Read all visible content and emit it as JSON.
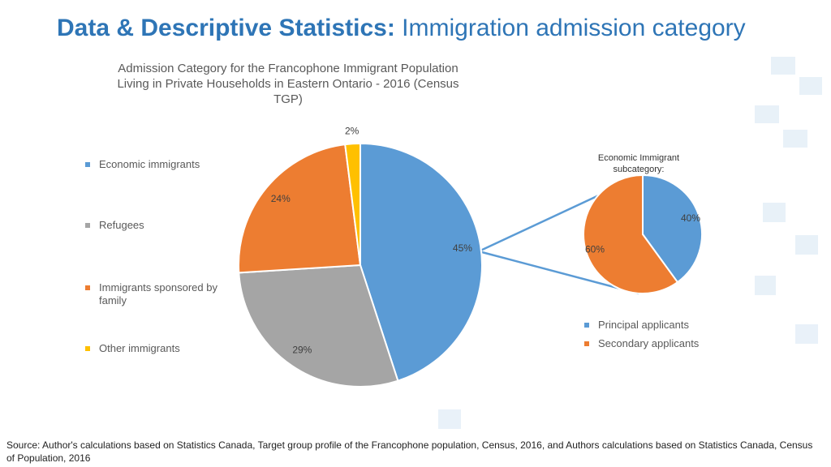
{
  "header": {
    "bold": "Data & Descriptive Statistics:",
    "rest": "Immigration admission category"
  },
  "chart_data": [
    {
      "type": "pie",
      "title": "Admission Category for the Francophone Immigrant Population Living in Private Households in Eastern Ontario - 2016 (Census TGP)",
      "categories": [
        "Economic immigrants",
        "Refugees",
        "Immigrants sponsored by family",
        "Other immigrants"
      ],
      "values": [
        45,
        29,
        24,
        2
      ],
      "value_labels": [
        "45%",
        "29%",
        "24%",
        "2%"
      ],
      "colors": [
        "#5b9bd5",
        "#a5a5a5",
        "#ed7d31",
        "#ffc000"
      ]
    },
    {
      "type": "pie",
      "title": "Economic Immigrant subcategory:",
      "categories": [
        "Principal applicants",
        "Secondary applicants"
      ],
      "values": [
        40,
        60
      ],
      "value_labels": [
        "40%",
        "60%"
      ],
      "colors": [
        "#5b9bd5",
        "#ed7d31"
      ]
    }
  ],
  "source": "Source: Author's calculations based on Statistics Canada, Target group profile of the Francophone population, Census, 2016, and Authors calculations based on Statistics Canada, Census of Population, 2016"
}
